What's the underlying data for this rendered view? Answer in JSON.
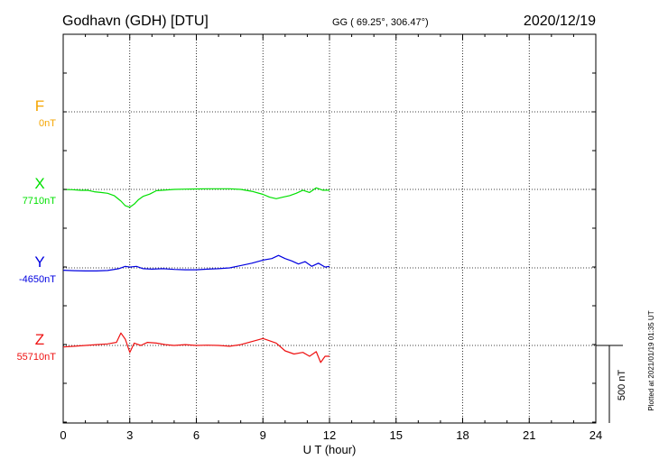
{
  "header": {
    "station": "Godhavn (GDH)  [DTU]",
    "coords": "GG ( 69.25°, 306.47°)",
    "date": "2020/12/19"
  },
  "footer": {
    "plotted": "Plotted at 2021/01/19 01:35 UT"
  },
  "chart_data": {
    "type": "line",
    "title": "Godhavn (GDH)  [DTU]",
    "xlabel": "U T (hour)",
    "xlim": [
      0,
      24
    ],
    "xticks": [
      0,
      3,
      6,
      9,
      12,
      15,
      18,
      21,
      24
    ],
    "scale_bar": "500 nT",
    "scale_nT": 500,
    "grid": true,
    "series": [
      {
        "name": "F",
        "baseline_label": "0nT",
        "color": "#f5a500",
        "values": []
      },
      {
        "name": "X",
        "baseline_label": "7710nT",
        "color": "#00e000",
        "values": [
          [
            0.0,
            0
          ],
          [
            0.4,
            -2
          ],
          [
            0.8,
            -6
          ],
          [
            1.1,
            -5
          ],
          [
            1.4,
            -15
          ],
          [
            1.7,
            -20
          ],
          [
            2.0,
            -25
          ],
          [
            2.3,
            -40
          ],
          [
            2.6,
            -75
          ],
          [
            2.8,
            -105
          ],
          [
            3.0,
            -115
          ],
          [
            3.2,
            -95
          ],
          [
            3.4,
            -65
          ],
          [
            3.6,
            -45
          ],
          [
            3.9,
            -30
          ],
          [
            4.2,
            -8
          ],
          [
            4.5,
            -5
          ],
          [
            5.0,
            0
          ],
          [
            5.5,
            2
          ],
          [
            6.0,
            3
          ],
          [
            6.5,
            4
          ],
          [
            7.0,
            4
          ],
          [
            7.5,
            4
          ],
          [
            8.0,
            0
          ],
          [
            8.5,
            -12
          ],
          [
            9.0,
            -32
          ],
          [
            9.3,
            -50
          ],
          [
            9.6,
            -60
          ],
          [
            9.9,
            -50
          ],
          [
            10.2,
            -40
          ],
          [
            10.5,
            -25
          ],
          [
            10.8,
            -5
          ],
          [
            11.1,
            -20
          ],
          [
            11.4,
            10
          ],
          [
            11.7,
            -5
          ],
          [
            12.0,
            -5
          ]
        ]
      },
      {
        "name": "Y",
        "baseline_label": "-4650nT",
        "color": "#0000e0",
        "values": [
          [
            0.0,
            -15
          ],
          [
            0.5,
            -18
          ],
          [
            1.0,
            -20
          ],
          [
            1.5,
            -20
          ],
          [
            2.0,
            -17
          ],
          [
            2.5,
            -5
          ],
          [
            2.8,
            10
          ],
          [
            3.0,
            5
          ],
          [
            3.3,
            10
          ],
          [
            3.6,
            -5
          ],
          [
            4.0,
            -8
          ],
          [
            4.5,
            -5
          ],
          [
            5.0,
            -10
          ],
          [
            5.5,
            -12
          ],
          [
            6.0,
            -12
          ],
          [
            6.5,
            -8
          ],
          [
            7.0,
            -5
          ],
          [
            7.5,
            0
          ],
          [
            8.0,
            15
          ],
          [
            8.5,
            30
          ],
          [
            9.0,
            50
          ],
          [
            9.4,
            60
          ],
          [
            9.7,
            80
          ],
          [
            10.0,
            60
          ],
          [
            10.3,
            45
          ],
          [
            10.6,
            25
          ],
          [
            10.9,
            40
          ],
          [
            11.2,
            10
          ],
          [
            11.5,
            30
          ],
          [
            11.8,
            5
          ],
          [
            12.0,
            10
          ]
        ]
      },
      {
        "name": "Z",
        "baseline_label": "55710nT",
        "color": "#ee1111",
        "values": [
          [
            0.0,
            -10
          ],
          [
            0.5,
            -5
          ],
          [
            1.0,
            0
          ],
          [
            1.5,
            5
          ],
          [
            2.0,
            10
          ],
          [
            2.4,
            20
          ],
          [
            2.6,
            80
          ],
          [
            2.8,
            40
          ],
          [
            3.0,
            -45
          ],
          [
            3.2,
            15
          ],
          [
            3.5,
            0
          ],
          [
            3.8,
            20
          ],
          [
            4.2,
            15
          ],
          [
            4.6,
            5
          ],
          [
            5.0,
            0
          ],
          [
            5.5,
            5
          ],
          [
            6.0,
            0
          ],
          [
            6.5,
            2
          ],
          [
            7.0,
            0
          ],
          [
            7.5,
            -5
          ],
          [
            8.0,
            5
          ],
          [
            8.5,
            25
          ],
          [
            9.0,
            45
          ],
          [
            9.3,
            30
          ],
          [
            9.6,
            15
          ],
          [
            10.0,
            -35
          ],
          [
            10.4,
            -55
          ],
          [
            10.8,
            -45
          ],
          [
            11.1,
            -70
          ],
          [
            11.4,
            -40
          ],
          [
            11.6,
            -110
          ],
          [
            11.8,
            -70
          ],
          [
            12.0,
            -70
          ]
        ]
      }
    ]
  }
}
